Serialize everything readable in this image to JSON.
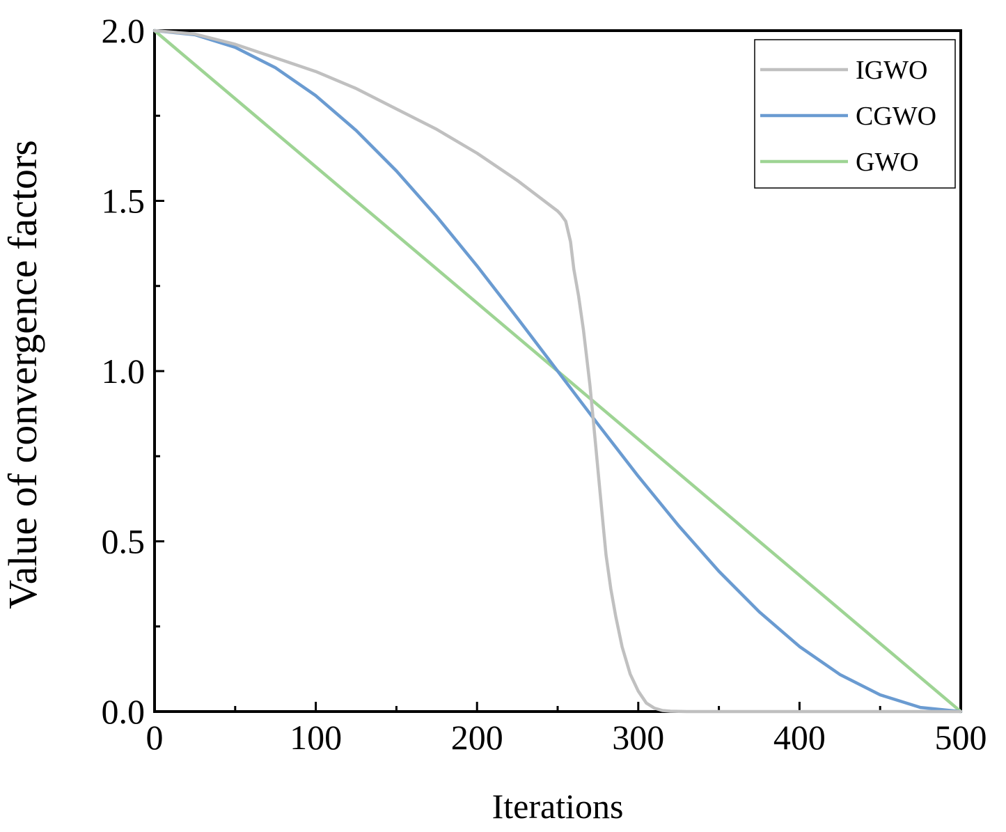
{
  "chart_data": {
    "type": "line",
    "title": "",
    "xlabel": "Iterations",
    "ylabel": "Value of convergence factors",
    "xlim": [
      0,
      500
    ],
    "ylim": [
      0,
      2.0
    ],
    "x_ticks": [
      0,
      100,
      200,
      300,
      400,
      500
    ],
    "x_tick_labels": [
      "0",
      "100",
      "200",
      "300",
      "400",
      "500"
    ],
    "x_minor_ticks": [
      50,
      150,
      250,
      350,
      450
    ],
    "y_ticks": [
      0,
      0.5,
      1.0,
      1.5,
      2.0
    ],
    "y_tick_labels": [
      "0.0",
      "0.5",
      "1.0",
      "1.5",
      "2.0"
    ],
    "y_minor_ticks": [
      0.25,
      0.75,
      1.25,
      1.75
    ],
    "legend_position": "top-right",
    "series": [
      {
        "name": "IGWO",
        "color": "#c0c0c0",
        "x": [
          0,
          25,
          50,
          75,
          100,
          125,
          150,
          175,
          200,
          225,
          250,
          252,
          255,
          258,
          260,
          263,
          266,
          268,
          270,
          272,
          274,
          276,
          278,
          280,
          283,
          286,
          290,
          295,
          300,
          305,
          310,
          315,
          320,
          330,
          340,
          360,
          400,
          450,
          500
        ],
        "values": [
          2.0,
          1.99,
          1.96,
          1.92,
          1.88,
          1.83,
          1.77,
          1.71,
          1.64,
          1.56,
          1.47,
          1.46,
          1.44,
          1.38,
          1.3,
          1.22,
          1.12,
          1.04,
          0.96,
          0.86,
          0.76,
          0.66,
          0.56,
          0.46,
          0.36,
          0.28,
          0.19,
          0.11,
          0.06,
          0.025,
          0.01,
          0.003,
          0.001,
          0,
          0,
          0,
          0,
          0,
          0
        ]
      },
      {
        "name": "CGWO",
        "color": "#6a9bd1",
        "x": [
          0,
          25,
          50,
          75,
          100,
          125,
          150,
          175,
          200,
          225,
          250,
          275,
          300,
          325,
          350,
          375,
          400,
          425,
          450,
          475,
          500
        ],
        "values": [
          2.0,
          1.988,
          1.951,
          1.891,
          1.809,
          1.707,
          1.588,
          1.454,
          1.309,
          1.156,
          1.0,
          0.844,
          0.691,
          0.546,
          0.412,
          0.293,
          0.191,
          0.109,
          0.049,
          0.012,
          0.0
        ]
      },
      {
        "name": "GWO",
        "color": "#9ed494",
        "x": [
          0,
          500
        ],
        "values": [
          2.0,
          0.0
        ]
      }
    ]
  }
}
